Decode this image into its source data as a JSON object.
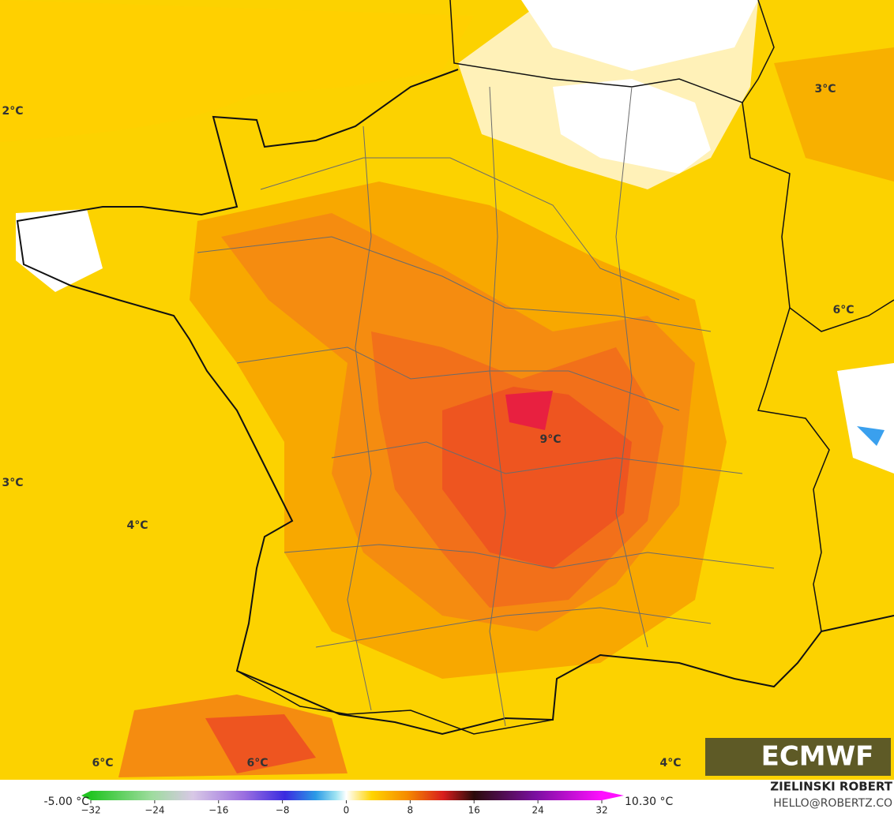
{
  "map": {
    "labels": [
      "2°C",
      "3°C",
      "3°C",
      "6°C",
      "4°C",
      "9°C",
      "6°C",
      "6°C",
      "4°C"
    ],
    "logo": "ECMWF",
    "colorbar": {
      "min_label": "-5.00 °C",
      "max_label": "10.30 °C",
      "ticks": [
        {
          "value": -32,
          "label": "−32"
        },
        {
          "value": -24,
          "label": "−24"
        },
        {
          "value": -16,
          "label": "−16"
        },
        {
          "value": -8,
          "label": "−8"
        },
        0,
        8,
        16,
        24,
        32
      ]
    },
    "credit": {
      "author": "ZIELINSKI ROBERT",
      "contact": "HELLO@ROBERTZ.CO"
    }
  }
}
